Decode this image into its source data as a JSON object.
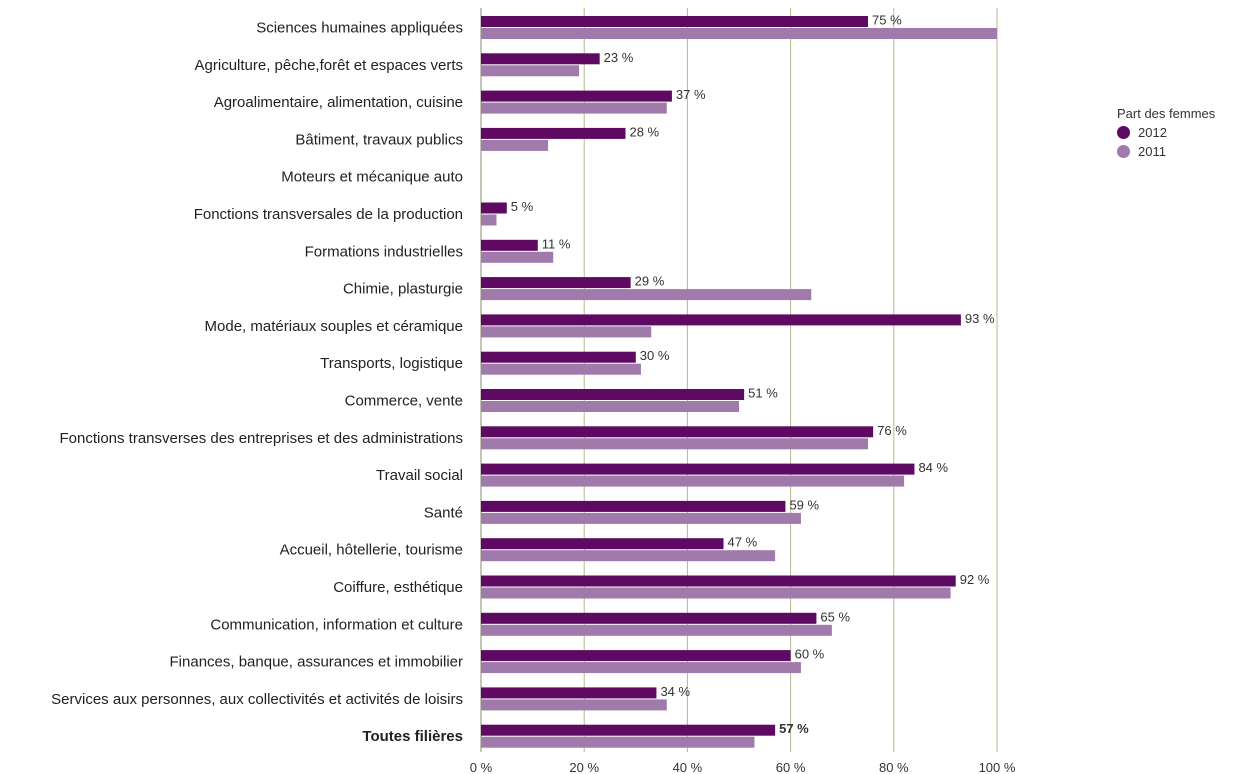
{
  "chart_data": {
    "type": "bar",
    "orientation": "horizontal",
    "categories": [
      "Sciences humaines appliquées",
      "Agriculture, pêche,forêt et espaces verts",
      "Agroalimentaire, alimentation, cuisine",
      "Bâtiment, travaux publics",
      "Moteurs et mécanique auto",
      "Fonctions transversales de la production",
      "Formations industrielles",
      "Chimie, plasturgie",
      "Mode, matériaux souples et céramique",
      "Transports, logistique",
      "Commerce, vente",
      "Fonctions transverses des entreprises et des administrations",
      "Travail social",
      "Santé",
      "Accueil, hôtellerie, tourisme",
      "Coiffure, esthétique",
      "Communication, information et culture",
      "Finances, banque, assurances et immobilier",
      "Services aux personnes, aux collectivités et activités de loisirs",
      "Toutes filières"
    ],
    "bold_categories": [
      "Toutes filières"
    ],
    "series": [
      {
        "name": "2012",
        "color": "#5e0a63",
        "values": [
          75,
          23,
          37,
          28,
          null,
          5,
          11,
          29,
          93,
          30,
          51,
          76,
          84,
          59,
          47,
          92,
          65,
          60,
          34,
          57
        ],
        "labels": [
          "75 %",
          "23 %",
          "37 %",
          "28 %",
          "",
          "5 %",
          "11 %",
          "29 %",
          "93 %",
          "30 %",
          "51 %",
          "76 %",
          "84 %",
          "59 %",
          "47 %",
          "92 %",
          "65 %",
          "60 %",
          "34 %",
          "57 %"
        ]
      },
      {
        "name": "2011",
        "color": "#a07aaa",
        "values": [
          100,
          19,
          36,
          13,
          null,
          3,
          14,
          64,
          33,
          31,
          50,
          75,
          82,
          62,
          57,
          91,
          68,
          62,
          36,
          53
        ]
      }
    ],
    "xlim": [
      0,
      100
    ],
    "xticks": [
      "0 %",
      "20 %",
      "40 %",
      "60 %",
      "80 %",
      "100 %"
    ],
    "xtick_values": [
      0,
      20,
      40,
      60,
      80,
      100
    ],
    "grid": true,
    "gridline_color": "#b5b98a",
    "legend": {
      "title": "Part des femmes",
      "placement": "right",
      "entries": [
        "2012",
        "2011"
      ]
    },
    "title": "",
    "xlabel": "",
    "ylabel": ""
  }
}
